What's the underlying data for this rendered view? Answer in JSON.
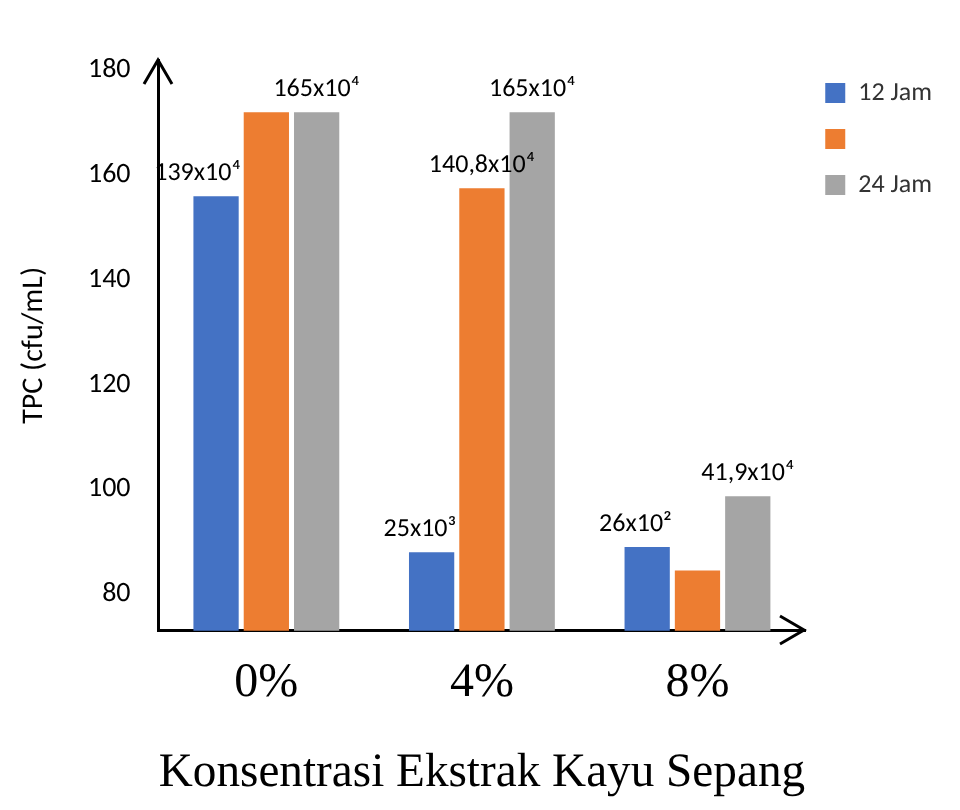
{
  "chart_data": {
    "type": "bar",
    "xlabel": "Konsentrasi Ekstrak Kayu Sepang",
    "ylabel": "TPC (cfu/mL)",
    "categories": [
      "0%",
      "4%",
      "8%"
    ],
    "series": [
      {
        "name": "12 Jam",
        "color": "#4472c4",
        "values": [
          156,
          88,
          89
        ]
      },
      {
        "color": "#ed7d31",
        "values": [
          172,
          157.5,
          84.5
        ]
      },
      {
        "name": "24 Jam",
        "color": "#a5a5a5",
        "values": [
          172,
          172,
          98.7
        ]
      }
    ],
    "annotations": [
      "139x10⁴",
      "165x10⁴",
      "25x10³",
      {
        "text": "140,8x10⁴",
        "x": "4%",
        "y": 157.5
      },
      "165x10⁴",
      "26x10²",
      "41,9x10⁴"
    ],
    "ylim": [
      73,
      182
    ],
    "yticks": [
      80,
      100,
      120,
      140,
      160,
      180
    ],
    "grid": false,
    "legend": "top right"
  }
}
